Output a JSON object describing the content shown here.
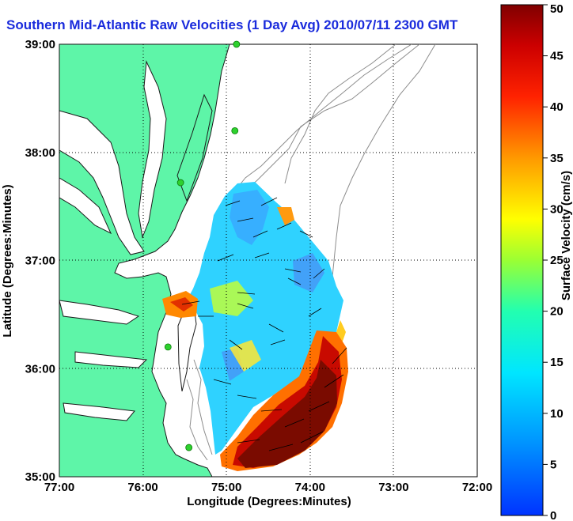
{
  "title": "Southern Mid-Atlantic Raw Velocities (1 Day Avg) 2010/07/11 2300 GMT",
  "map": {
    "xlabel": "Longitude (Degrees:Minutes)",
    "ylabel": "Latitude (Degrees:Minutes)",
    "lon_ticks": [
      "77:00",
      "76:00",
      "75:00",
      "74:00",
      "73:00",
      "72:00"
    ],
    "lat_ticks": [
      "39:00",
      "38:00",
      "37:00",
      "36:00",
      "35:00"
    ],
    "lon_range": [
      -77,
      -72
    ],
    "lat_range": [
      35,
      39
    ],
    "grid": true,
    "land_color": "#5ef5a8",
    "bathymetry_color": "#8c8c8c",
    "station_color": "#2ed12e",
    "stations": [
      {
        "lon": -74.88,
        "lat": 39.0
      },
      {
        "lon": -74.9,
        "lat": 38.2
      },
      {
        "lon": -75.55,
        "lat": 37.72
      },
      {
        "lon": -75.7,
        "lat": 36.2
      },
      {
        "lon": -75.45,
        "lat": 35.27
      }
    ]
  },
  "colorbar": {
    "label": "Surface Velocity (cm/s)",
    "ticks": [
      "0",
      "5",
      "10",
      "15",
      "20",
      "25",
      "30",
      "35",
      "40",
      "45",
      "50"
    ],
    "min": 0,
    "max": 50,
    "colormap": "jet"
  }
}
